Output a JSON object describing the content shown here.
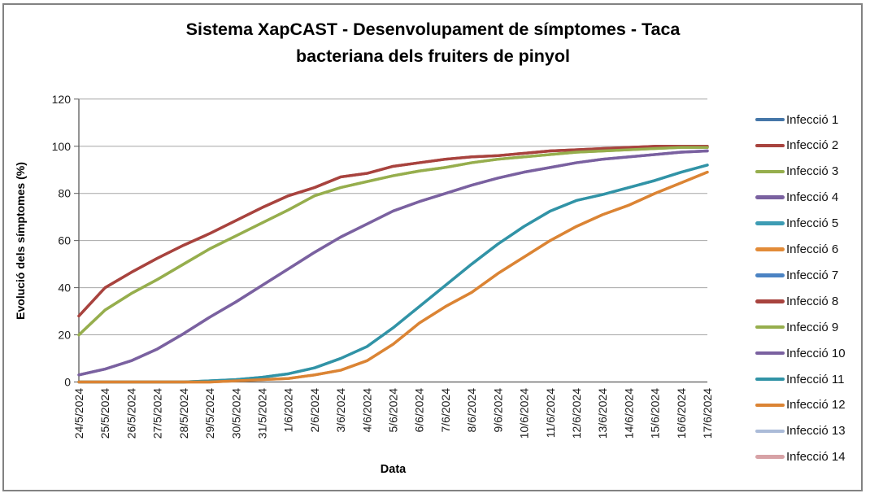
{
  "title": {
    "lines": [
      "Sistema XapCAST - Desenvolupament de símptomes - Taca",
      "bacteriana dels fruiters de pinyol"
    ]
  },
  "y_axis": {
    "title": "Evolució dels símptomes (%)",
    "ticks": [
      0,
      20,
      40,
      60,
      80,
      100,
      120
    ]
  },
  "x_axis": {
    "title": "Data"
  },
  "chart_data": {
    "type": "line",
    "title": "Sistema XapCAST - Desenvolupament de símptomes - Taca bacteriana dels fruiters de pinyol",
    "xlabel": "Data",
    "ylabel": "Evolució dels símptomes (%)",
    "ylim": [
      0,
      120
    ],
    "y_step": 20,
    "grid": true,
    "legend_position": "right",
    "grid_color": "#A6A6A6",
    "axis_color": "#595959",
    "categories": [
      "24/5/2024",
      "25/5/2024",
      "26/5/2024",
      "27/5/2024",
      "28/5/2024",
      "29/5/2024",
      "30/5/2024",
      "31/5/2024",
      "1/6/2024",
      "2/6/2024",
      "3/6/2024",
      "4/6/2024",
      "5/6/2024",
      "6/6/2024",
      "7/6/2024",
      "8/6/2024",
      "9/6/2024",
      "10/6/2024",
      "11/6/2024",
      "12/6/2024",
      "13/6/2024",
      "14/6/2024",
      "15/6/2024",
      "16/6/2024",
      "17/6/2024"
    ],
    "series": [
      {
        "name": "Infecció 1",
        "color": "#4576A8",
        "values": null
      },
      {
        "name": "Infecció 2",
        "color": "#A8433E",
        "values": [
          28,
          40,
          46.5,
          52.5,
          58,
          63,
          68.5,
          74,
          79,
          82.5,
          87,
          88.5,
          91.5,
          93,
          94.5,
          95.5,
          96,
          97,
          98,
          98.5,
          99,
          99.5,
          100,
          100,
          100
        ]
      },
      {
        "name": "Infecció 3",
        "color": "#96AE4D",
        "values": [
          20,
          30.5,
          37.5,
          43.5,
          50,
          56.5,
          62,
          67.5,
          73,
          79,
          82.5,
          85,
          87.5,
          89.5,
          91,
          93,
          94.5,
          95.5,
          96.5,
          97.5,
          98,
          98.5,
          99,
          99.5,
          99.5
        ]
      },
      {
        "name": "Infecció 4",
        "color": "#7A61A0",
        "values": [
          3,
          5.5,
          9,
          14,
          20.5,
          27.5,
          34,
          41,
          48,
          55,
          61.5,
          67,
          72.5,
          76.5,
          80,
          83.5,
          86.5,
          89,
          91,
          93,
          94.5,
          95.5,
          96.5,
          97.5,
          98
        ]
      },
      {
        "name": "Infecció 5",
        "color": "#3D9CB4",
        "values": [
          0,
          0,
          0,
          0,
          0,
          0.5,
          1,
          2,
          3.5,
          6,
          10,
          15,
          23,
          32,
          41,
          50,
          58.5,
          66,
          72.5,
          77,
          79.5,
          82.5,
          85.5,
          89,
          92
        ]
      },
      {
        "name": "Infecció 6",
        "color": "#E28B38",
        "values": [
          0,
          0,
          0,
          0,
          0,
          0,
          0.5,
          1,
          1.5,
          3,
          5,
          9,
          16,
          25,
          32,
          38,
          46,
          53,
          60,
          66,
          71,
          75,
          80,
          84.5,
          89
        ]
      },
      {
        "name": "Infecció 7",
        "color": "#4B83C3",
        "values": null
      },
      {
        "name": "Infecció 8",
        "color": "#A8433E",
        "values": [
          28,
          40,
          46.5,
          52.5,
          58,
          63,
          68.5,
          74,
          79,
          82.5,
          87,
          88.5,
          91.5,
          93,
          94.5,
          95.5,
          96,
          97,
          98,
          98.5,
          99,
          99.5,
          100,
          100,
          100
        ]
      },
      {
        "name": "Infecció 9",
        "color": "#96AE4D",
        "values": [
          20,
          30.5,
          37.5,
          43.5,
          50,
          56.5,
          62,
          67.5,
          73,
          79,
          82.5,
          85,
          87.5,
          89.5,
          91,
          93,
          94.5,
          95.5,
          96.5,
          97.5,
          98,
          98.5,
          99,
          99.5,
          99.5
        ]
      },
      {
        "name": "Infecció 10",
        "color": "#7A61A0",
        "values": [
          3,
          5.5,
          9,
          14,
          20.5,
          27.5,
          34,
          41,
          48,
          55,
          61.5,
          67,
          72.5,
          76.5,
          80,
          83.5,
          86.5,
          89,
          91,
          93,
          94.5,
          95.5,
          96.5,
          97.5,
          98
        ]
      },
      {
        "name": "Infecció 11",
        "color": "#3193A6",
        "values": [
          0,
          0,
          0,
          0,
          0,
          0.5,
          1,
          2,
          3.5,
          6,
          10,
          15,
          23,
          32,
          41,
          50,
          58.5,
          66,
          72.5,
          77,
          79.5,
          82.5,
          85.5,
          89,
          92
        ]
      },
      {
        "name": "Infecció 12",
        "color": "#DB8434",
        "values": [
          0,
          0,
          0,
          0,
          0,
          0,
          0.5,
          1,
          1.5,
          3,
          5,
          9,
          16,
          25,
          32,
          38,
          46,
          53,
          60,
          66,
          71,
          75,
          80,
          84.5,
          89
        ]
      },
      {
        "name": "Infecció 13",
        "color": "#ABBBD8",
        "values": null
      },
      {
        "name": "Infecció 14",
        "color": "#D7A2A6",
        "values": null
      }
    ]
  }
}
